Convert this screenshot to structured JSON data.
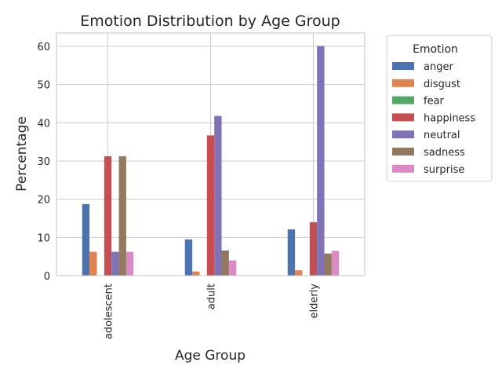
{
  "chart_data": {
    "type": "bar",
    "title": "Emotion Distribution by Age Group",
    "xlabel": "Age Group",
    "ylabel": "Percentage",
    "categories": [
      "adolescent",
      "adult",
      "elderly"
    ],
    "ylim": [
      0,
      63.5
    ],
    "yticks": [
      0,
      10,
      20,
      30,
      40,
      50,
      60
    ],
    "grid": true,
    "legend": {
      "title": "Emotion",
      "placement": "outside-right"
    },
    "series": [
      {
        "name": "anger",
        "color": "#4c72b0",
        "values": [
          18.75,
          9.5,
          12.1
        ]
      },
      {
        "name": "disgust",
        "color": "#dd8452",
        "values": [
          6.25,
          1.1,
          1.4
        ]
      },
      {
        "name": "fear",
        "color": "#55a868",
        "values": [
          0,
          0,
          0
        ]
      },
      {
        "name": "happiness",
        "color": "#c44e52",
        "values": [
          31.25,
          36.7,
          14.0
        ]
      },
      {
        "name": "neutral",
        "color": "#8172b3",
        "values": [
          6.25,
          41.8,
          60.1
        ]
      },
      {
        "name": "sadness",
        "color": "#937860",
        "values": [
          31.25,
          6.6,
          5.8
        ]
      },
      {
        "name": "surprise",
        "color": "#da8bc3",
        "values": [
          6.25,
          4.0,
          6.5
        ]
      }
    ]
  }
}
